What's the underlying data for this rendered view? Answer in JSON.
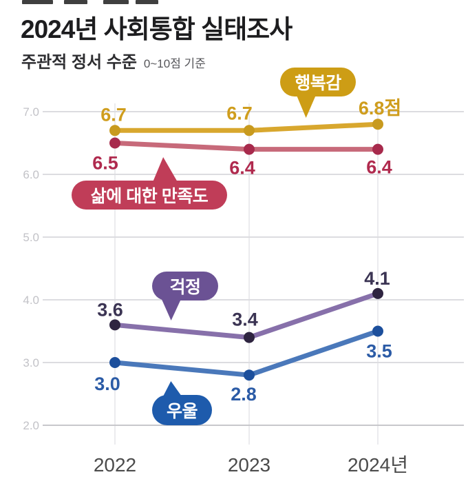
{
  "header": {
    "title": "2024년 사회통합 실태조사",
    "subtitle": "주관적 정서 수준",
    "subtitle_note": "0~10점 기준"
  },
  "chart_data": {
    "type": "line",
    "title": "2024년 사회통합 실태조사",
    "subtitle": "주관적 정서 수준 (0~10점 기준)",
    "x_categories": [
      "2022",
      "2023",
      "2024년"
    ],
    "yticks": [
      "7.0",
      "6.0",
      "5.0",
      "4.0",
      "3.0",
      "2.0"
    ],
    "ylim": [
      2,
      7
    ],
    "grid": true,
    "legend_position": "inline-bubbles",
    "series": [
      {
        "key": "happiness",
        "name": "행복감",
        "values": [
          6.7,
          6.7,
          6.8
        ],
        "labels": [
          "6.7",
          "6.7",
          "6.8점"
        ],
        "line_color": "#d8a72e",
        "marker_color": "#c89a1e",
        "label_color": "#cf9d1d",
        "badge_color": "#cd9d15",
        "label_side": "above"
      },
      {
        "key": "life-satisfaction",
        "name": "삶에 대한 만족도",
        "values": [
          6.5,
          6.4,
          6.4
        ],
        "labels": [
          "6.5",
          "6.4",
          "6.4"
        ],
        "line_color": "#c76a7a",
        "marker_color": "#a72a4c",
        "label_color": "#b02a4e",
        "badge_color": "#c03d58",
        "label_side": "below"
      },
      {
        "key": "worry",
        "name": "걱정",
        "values": [
          3.6,
          3.4,
          4.1
        ],
        "labels": [
          "3.6",
          "3.4",
          "4.1"
        ],
        "line_color": "#8770aa",
        "marker_color": "#2e2440",
        "label_color": "#3b3453",
        "badge_color": "#6b5294",
        "label_side": "above"
      },
      {
        "key": "depression",
        "name": "우울",
        "values": [
          3.0,
          2.8,
          3.5
        ],
        "labels": [
          "3.0",
          "2.8",
          "3.5"
        ],
        "line_color": "#4a78ba",
        "marker_color": "#1c4f9c",
        "label_color": "#2b5ba6",
        "badge_color": "#1e5bac",
        "label_side": "below"
      }
    ]
  }
}
